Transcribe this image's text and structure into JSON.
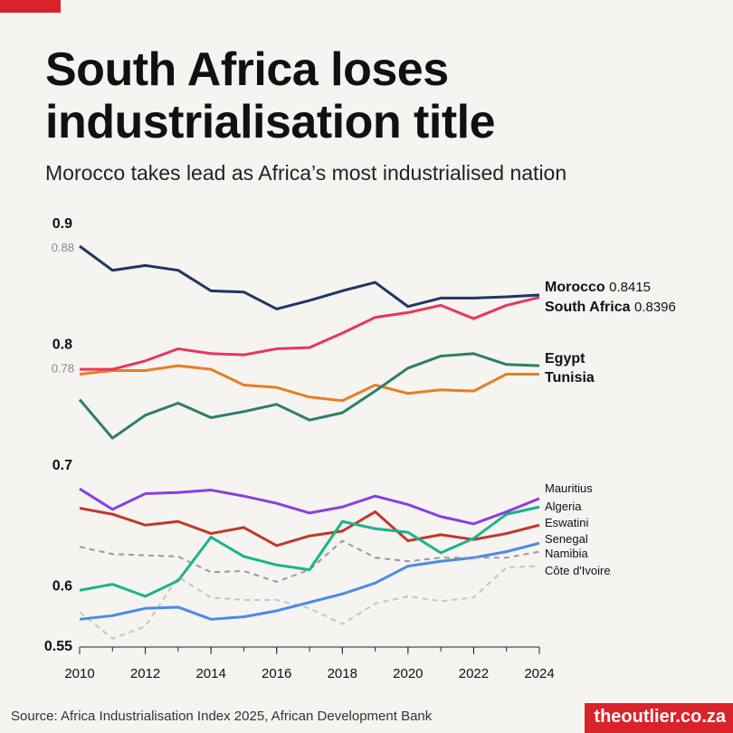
{
  "chart_data": {
    "type": "line",
    "title": "South Africa loses industrialisation title",
    "subtitle": "Morocco takes lead as Africa’s most industrialised nation",
    "source": "Source: Africa Industrialisation Index 2025, African Development Bank",
    "brand": "theoutlier.co.za",
    "x": [
      2010,
      2011,
      2012,
      2013,
      2014,
      2015,
      2016,
      2017,
      2018,
      2019,
      2020,
      2021,
      2022,
      2023,
      2024
    ],
    "xlim": [
      2010,
      2024
    ],
    "xticks": [
      2010,
      2012,
      2014,
      2016,
      2018,
      2020,
      2022,
      2024
    ],
    "ylim": [
      0.55,
      0.9
    ],
    "yticks": [
      0.9,
      0.8,
      0.7,
      0.6,
      0.55
    ],
    "annotation_ticks": [
      0.88,
      0.78
    ],
    "grid": false,
    "series": [
      {
        "name": "Morocco",
        "color": "#1f3566",
        "bold": true,
        "dashed": false,
        "values": [
          0.882,
          0.862,
          0.866,
          0.862,
          0.845,
          0.844,
          0.83,
          0.837,
          0.845,
          0.852,
          0.832,
          0.839,
          0.839,
          0.84,
          0.8415
        ],
        "value_labels": [
          null,
          null,
          null,
          null,
          null,
          null,
          null,
          null,
          null,
          null,
          null,
          null,
          null,
          null,
          "0.8415"
        ]
      },
      {
        "name": "South Africa",
        "color": "#e8365d",
        "bold": true,
        "dashed": false,
        "values": [
          0.78,
          0.78,
          0.787,
          0.797,
          0.793,
          0.792,
          0.797,
          0.798,
          0.81,
          0.823,
          0.827,
          0.833,
          0.822,
          0.833,
          0.8396
        ],
        "value_labels": [
          null,
          null,
          null,
          null,
          null,
          null,
          null,
          null,
          null,
          null,
          null,
          null,
          null,
          null,
          "0.8396"
        ]
      },
      {
        "name": "Egypt",
        "color": "#2e7d6b",
        "bold": true,
        "dashed": false,
        "values": [
          0.755,
          0.723,
          0.742,
          0.752,
          0.74,
          0.745,
          0.751,
          0.738,
          0.744,
          0.762,
          0.781,
          0.791,
          0.793,
          0.784,
          0.783
        ]
      },
      {
        "name": "Tunisia",
        "color": "#e67e22",
        "bold": true,
        "dashed": false,
        "values": [
          0.776,
          0.779,
          0.779,
          0.783,
          0.78,
          0.767,
          0.765,
          0.757,
          0.754,
          0.767,
          0.76,
          0.763,
          0.762,
          0.776,
          0.776
        ]
      },
      {
        "name": "Mauritius",
        "color": "#8a3ee0",
        "bold": false,
        "dashed": false,
        "values": [
          0.681,
          0.664,
          0.677,
          0.678,
          0.68,
          0.675,
          0.669,
          0.661,
          0.666,
          0.675,
          0.668,
          0.658,
          0.652,
          0.662,
          0.673
        ]
      },
      {
        "name": "Algeria",
        "color": "#1db38a",
        "bold": false,
        "dashed": false,
        "values": [
          0.597,
          0.602,
          0.592,
          0.605,
          0.641,
          0.625,
          0.618,
          0.614,
          0.654,
          0.648,
          0.645,
          0.628,
          0.64,
          0.66,
          0.666
        ]
      },
      {
        "name": "Eswatini",
        "color": "#c0392b",
        "bold": false,
        "dashed": false,
        "values": [
          0.665,
          0.66,
          0.651,
          0.654,
          0.644,
          0.649,
          0.634,
          0.642,
          0.646,
          0.662,
          0.638,
          0.643,
          0.639,
          0.644,
          0.651
        ]
      },
      {
        "name": "Senegal",
        "color": "#9a9a9a",
        "bold": false,
        "dashed": true,
        "values": [
          0.633,
          0.627,
          0.626,
          0.625,
          0.612,
          0.613,
          0.604,
          0.614,
          0.638,
          0.624,
          0.621,
          0.624,
          0.624,
          0.624,
          0.629
        ]
      },
      {
        "name": "Namibia",
        "color": "#4a8be8",
        "bold": false,
        "dashed": false,
        "values": [
          0.573,
          0.576,
          0.582,
          0.583,
          0.573,
          0.575,
          0.58,
          0.587,
          0.594,
          0.603,
          0.617,
          0.621,
          0.624,
          0.629,
          0.636
        ]
      },
      {
        "name": "Côte d'Ivoire",
        "color": "#c4c4c4",
        "bold": false,
        "dashed": true,
        "values": [
          0.579,
          0.557,
          0.567,
          0.608,
          0.591,
          0.589,
          0.589,
          0.582,
          0.569,
          0.586,
          0.592,
          0.588,
          0.591,
          0.616,
          0.617
        ]
      }
    ]
  }
}
